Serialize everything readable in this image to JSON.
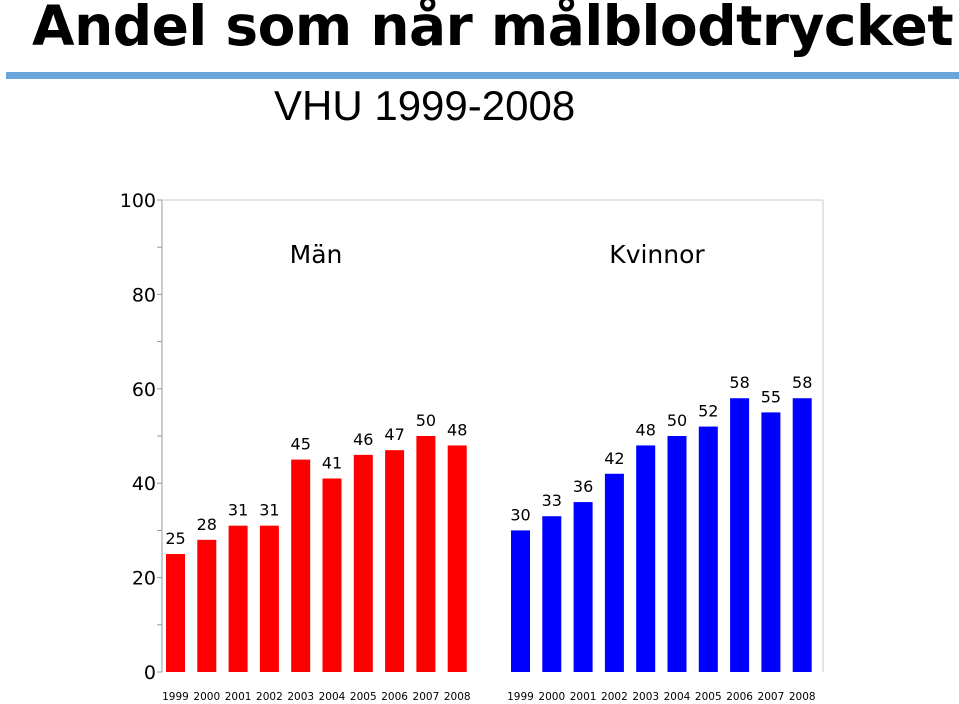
{
  "header": {
    "title": "Andel som når målblodtrycket",
    "subtitle": "VHU 1999-2008"
  },
  "colors": {
    "men": "#ff0000",
    "women": "#0000ff",
    "rule": "#6aa6da",
    "axis": "#999999"
  },
  "chart_data": {
    "type": "bar",
    "title": "VHU 1999-2008",
    "xlabel": "",
    "ylabel": "",
    "ylim": [
      0,
      100
    ],
    "yticks": [
      0,
      20,
      40,
      60,
      80,
      100
    ],
    "grid": false,
    "categories": [
      "1999",
      "2000",
      "2001",
      "2002",
      "2003",
      "2004",
      "2005",
      "2006",
      "2007",
      "2008"
    ],
    "series": [
      {
        "name": "Män",
        "color": "#ff0000",
        "values": [
          25,
          28,
          31,
          31,
          45,
          41,
          46,
          47,
          50,
          48
        ]
      },
      {
        "name": "Kvinnor",
        "color": "#0000ff",
        "values": [
          30,
          33,
          36,
          42,
          48,
          50,
          52,
          58,
          55,
          58
        ]
      }
    ]
  }
}
